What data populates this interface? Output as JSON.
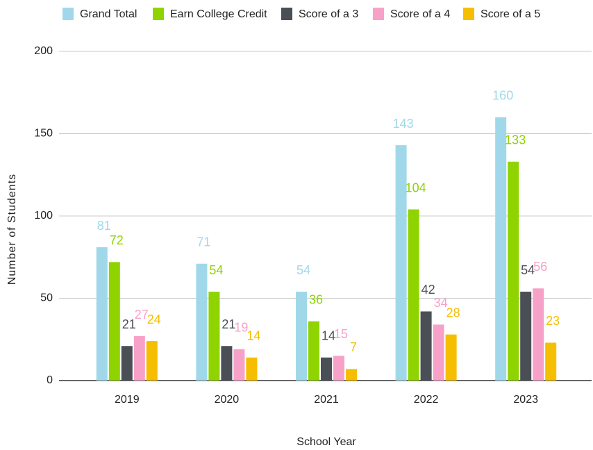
{
  "chart_data": {
    "type": "bar",
    "categories": [
      "2019",
      "2020",
      "2021",
      "2022",
      "2023"
    ],
    "series": [
      {
        "name": "Grand Total",
        "color": "#a0d8ea",
        "values": [
          81,
          71,
          54,
          143,
          160
        ]
      },
      {
        "name": "Earn College Credit",
        "color": "#8fd400",
        "values": [
          72,
          54,
          36,
          104,
          133
        ]
      },
      {
        "name": "Score of a 3",
        "color": "#4a4e55",
        "values": [
          21,
          21,
          14,
          42,
          54
        ]
      },
      {
        "name": "Score of a 4",
        "color": "#f7a1c9",
        "values": [
          27,
          19,
          15,
          34,
          56
        ]
      },
      {
        "name": "Score of a 5",
        "color": "#f5be00",
        "values": [
          24,
          14,
          7,
          28,
          23
        ]
      }
    ],
    "xlabel": "School Year",
    "ylabel": "Number of Students",
    "ylim": [
      0,
      200
    ],
    "yticks": [
      0,
      50,
      100,
      150,
      200
    ],
    "grid": true,
    "legend": "top"
  }
}
